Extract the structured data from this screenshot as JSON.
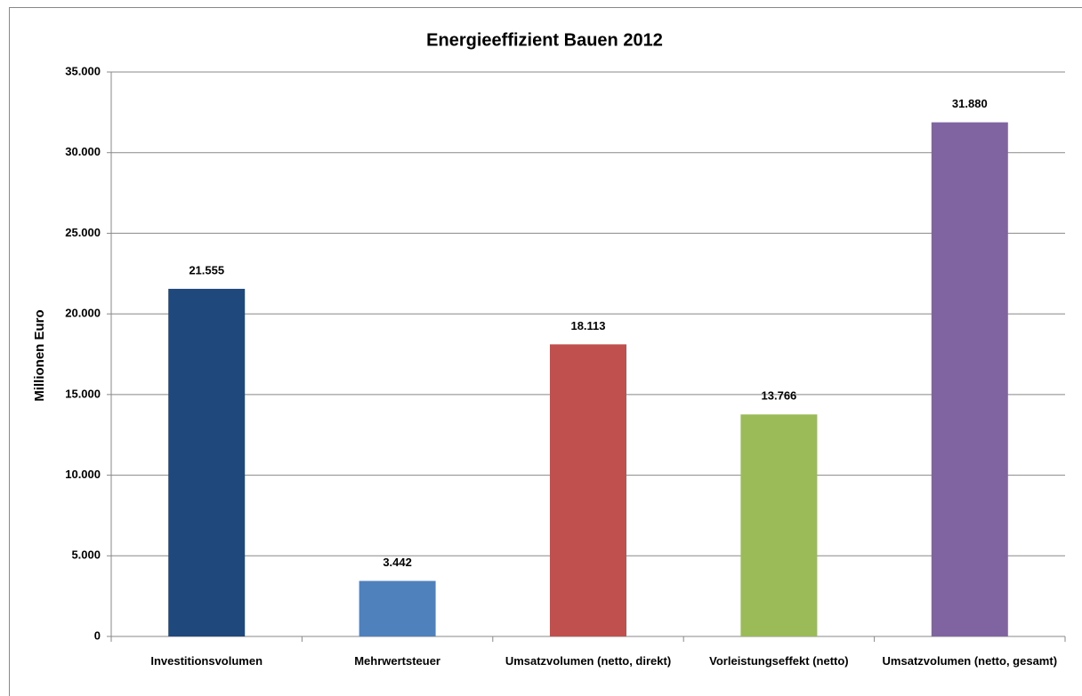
{
  "chart_data": {
    "type": "bar",
    "title": "Energieeffizient Bauen 2012",
    "y_label": "Millionen Euro",
    "categories": [
      "Investitionsvolumen",
      "Mehrwertsteuer",
      "Umsatzvolumen (netto, direkt)",
      "Vorleistungseffekt (netto)",
      "Umsatzvolumen (netto, gesamt)"
    ],
    "values": [
      21555,
      3442,
      18113,
      13766,
      31880
    ],
    "value_labels": [
      "21.555",
      "3.442",
      "18.113",
      "13.766",
      "31.880"
    ],
    "colors": [
      "#1f497d",
      "#4f81bd",
      "#c0504d",
      "#9bbb59",
      "#8064a2"
    ],
    "ylim": [
      0,
      35000
    ],
    "yticks": [
      0,
      {
        "value": 5000,
        "label": "5.000"
      },
      {
        "value": 10000,
        "label": "10.000"
      },
      {
        "value": 15000,
        "label": "15.000"
      },
      {
        "value": 20000,
        "label": "20.000"
      },
      {
        "value": 25000,
        "label": "25.000"
      },
      {
        "value": 30000,
        "label": "30.000"
      },
      {
        "value": 35000,
        "label": "35.000"
      }
    ],
    "grid": true
  }
}
